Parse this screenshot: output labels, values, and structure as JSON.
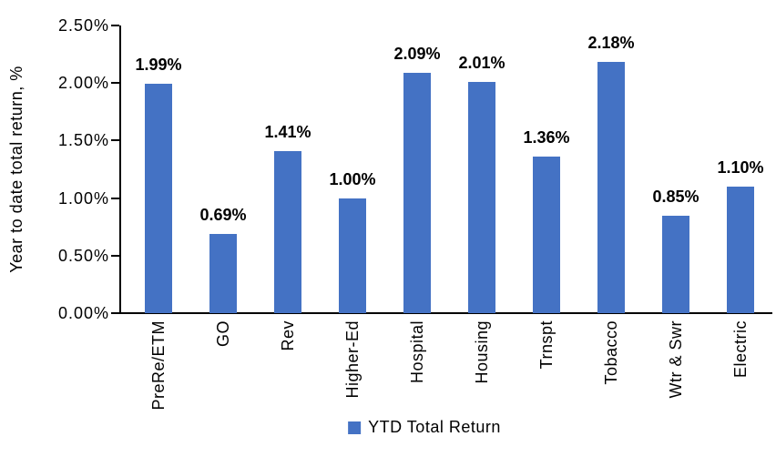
{
  "chart_data": {
    "type": "bar",
    "title": "",
    "ylabel": "Year to date total return, %",
    "xlabel": "",
    "categories": [
      "PreRe/ETM",
      "GO",
      "Rev",
      "Higher-Ed",
      "Hospital",
      "Housing",
      "Trnspt",
      "Tobacco",
      "Wtr & Swr",
      "Electric"
    ],
    "series": [
      {
        "name": "YTD Total Return",
        "values": [
          1.99,
          0.69,
          1.41,
          1.0,
          2.09,
          2.01,
          1.36,
          2.18,
          0.85,
          1.1
        ]
      }
    ],
    "value_labels": [
      "1.99%",
      "0.69%",
      "1.41%",
      "1.00%",
      "2.09%",
      "2.01%",
      "1.36%",
      "2.18%",
      "0.85%",
      "1.10%"
    ],
    "y_ticks": [
      {
        "value": 0.0,
        "label": "0.00%"
      },
      {
        "value": 0.5,
        "label": "0.50%"
      },
      {
        "value": 1.0,
        "label": "1.00%"
      },
      {
        "value": 1.5,
        "label": "1.50%"
      },
      {
        "value": 2.0,
        "label": "2.00%"
      },
      {
        "value": 2.5,
        "label": "2.50%"
      }
    ],
    "ylim": [
      0,
      2.5
    ],
    "grid": false,
    "legend": {
      "position": "bottom",
      "label": "YTD Total Return",
      "marker_color": "#4472C4"
    },
    "colors": {
      "bar": "#4472C4",
      "axis": "#000000",
      "text": "#000000",
      "background": "#FFFFFF"
    }
  }
}
